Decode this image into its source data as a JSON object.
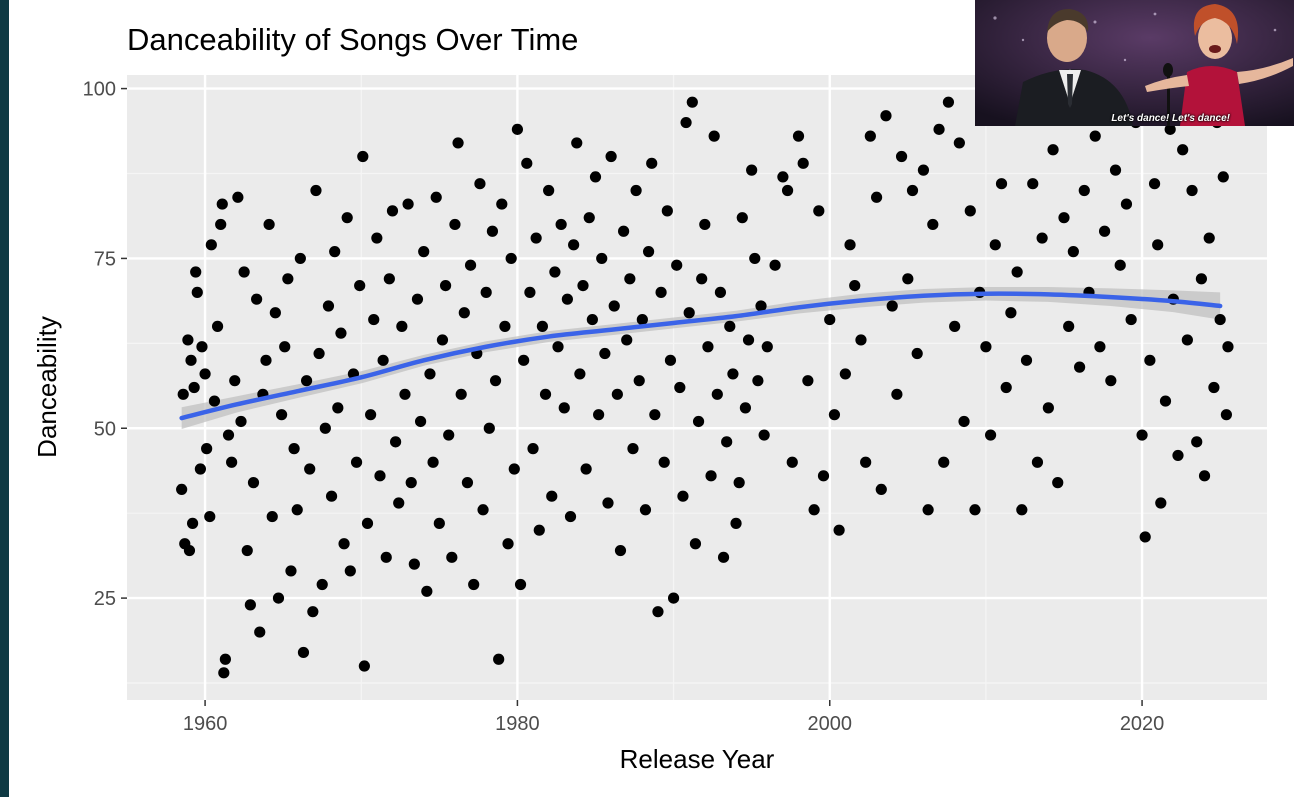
{
  "chart_data": {
    "type": "scatter",
    "title": "Danceability of Songs Over Time",
    "xlabel": "Release Year",
    "ylabel": "Danceability",
    "xlim": [
      1955,
      2028
    ],
    "ylim": [
      10,
      102
    ],
    "x_ticks": [
      1960,
      1980,
      2000,
      2020
    ],
    "y_ticks": [
      25,
      50,
      75,
      100
    ],
    "x_tick_labels": [
      "1960",
      "1980",
      "2000",
      "2020"
    ],
    "y_tick_labels": [
      "25",
      "50",
      "75",
      "100"
    ],
    "grid": true,
    "legend": "none",
    "point_color": "#000000",
    "trend_color": "#3a63e8",
    "trend_band_color": "#bdbdbd",
    "trend": {
      "method": "smooth",
      "x": [
        1958.5,
        1962,
        1966,
        1970,
        1974,
        1978,
        1982,
        1986,
        1990,
        1994,
        1998,
        2002,
        2006,
        2010,
        2014,
        2018,
        2022,
        2025
      ],
      "y": [
        51.5,
        53.5,
        55.5,
        57.5,
        60,
        62,
        63.5,
        64.5,
        65.5,
        66.5,
        67.8,
        68.8,
        69.5,
        69.8,
        69.7,
        69.3,
        68.7,
        68
      ],
      "band": [
        1.6,
        1.2,
        1,
        0.9,
        0.8,
        0.8,
        0.8,
        0.8,
        0.8,
        0.8,
        0.9,
        1,
        1,
        1,
        1.1,
        1.3,
        1.6,
        2
      ]
    },
    "points": [
      [
        1958.5,
        41
      ],
      [
        1958.6,
        55
      ],
      [
        1958.7,
        33
      ],
      [
        1958.9,
        63
      ],
      [
        1959.0,
        32
      ],
      [
        1959.1,
        60
      ],
      [
        1959.2,
        36
      ],
      [
        1959.3,
        56
      ],
      [
        1959.4,
        73
      ],
      [
        1959.5,
        70
      ],
      [
        1959.7,
        44
      ],
      [
        1959.8,
        62
      ],
      [
        1960.0,
        58
      ],
      [
        1960.1,
        47
      ],
      [
        1960.3,
        37
      ],
      [
        1960.4,
        77
      ],
      [
        1960.6,
        54
      ],
      [
        1960.8,
        65
      ],
      [
        1961.0,
        80
      ],
      [
        1961.1,
        83
      ],
      [
        1961.2,
        14
      ],
      [
        1961.3,
        16
      ],
      [
        1961.5,
        49
      ],
      [
        1961.7,
        45
      ],
      [
        1961.9,
        57
      ],
      [
        1962.1,
        84
      ],
      [
        1962.3,
        51
      ],
      [
        1962.5,
        73
      ],
      [
        1962.7,
        32
      ],
      [
        1962.9,
        24
      ],
      [
        1963.1,
        42
      ],
      [
        1963.3,
        69
      ],
      [
        1963.5,
        20
      ],
      [
        1963.7,
        55
      ],
      [
        1963.9,
        60
      ],
      [
        1964.1,
        80
      ],
      [
        1964.3,
        37
      ],
      [
        1964.5,
        67
      ],
      [
        1964.7,
        25
      ],
      [
        1964.9,
        52
      ],
      [
        1965.1,
        62
      ],
      [
        1965.3,
        72
      ],
      [
        1965.5,
        29
      ],
      [
        1965.7,
        47
      ],
      [
        1965.9,
        38
      ],
      [
        1966.1,
        75
      ],
      [
        1966.3,
        17
      ],
      [
        1966.5,
        57
      ],
      [
        1966.7,
        44
      ],
      [
        1966.9,
        23
      ],
      [
        1967.1,
        85
      ],
      [
        1967.3,
        61
      ],
      [
        1967.5,
        27
      ],
      [
        1967.7,
        50
      ],
      [
        1967.9,
        68
      ],
      [
        1968.1,
        40
      ],
      [
        1968.3,
        76
      ],
      [
        1968.5,
        53
      ],
      [
        1968.7,
        64
      ],
      [
        1968.9,
        33
      ],
      [
        1969.1,
        81
      ],
      [
        1969.3,
        29
      ],
      [
        1969.5,
        58
      ],
      [
        1969.7,
        45
      ],
      [
        1969.9,
        71
      ],
      [
        1970.1,
        90
      ],
      [
        1970.2,
        15
      ],
      [
        1970.4,
        36
      ],
      [
        1970.6,
        52
      ],
      [
        1970.8,
        66
      ],
      [
        1971.0,
        78
      ],
      [
        1971.2,
        43
      ],
      [
        1971.4,
        60
      ],
      [
        1971.6,
        31
      ],
      [
        1971.8,
        72
      ],
      [
        1972.0,
        82
      ],
      [
        1972.2,
        48
      ],
      [
        1972.4,
        39
      ],
      [
        1972.6,
        65
      ],
      [
        1972.8,
        55
      ],
      [
        1973.0,
        83
      ],
      [
        1973.2,
        42
      ],
      [
        1973.4,
        30
      ],
      [
        1973.6,
        69
      ],
      [
        1973.8,
        51
      ],
      [
        1974.0,
        76
      ],
      [
        1974.2,
        26
      ],
      [
        1974.4,
        58
      ],
      [
        1974.6,
        45
      ],
      [
        1974.8,
        84
      ],
      [
        1975.0,
        36
      ],
      [
        1975.2,
        63
      ],
      [
        1975.4,
        71
      ],
      [
        1975.6,
        49
      ],
      [
        1975.8,
        31
      ],
      [
        1976.0,
        80
      ],
      [
        1976.2,
        92
      ],
      [
        1976.4,
        55
      ],
      [
        1976.6,
        67
      ],
      [
        1976.8,
        42
      ],
      [
        1977.0,
        74
      ],
      [
        1977.2,
        27
      ],
      [
        1977.4,
        61
      ],
      [
        1977.6,
        86
      ],
      [
        1977.8,
        38
      ],
      [
        1978.0,
        70
      ],
      [
        1978.2,
        50
      ],
      [
        1978.4,
        79
      ],
      [
        1978.6,
        57
      ],
      [
        1978.8,
        16
      ],
      [
        1979.0,
        83
      ],
      [
        1979.2,
        65
      ],
      [
        1979.4,
        33
      ],
      [
        1979.6,
        75
      ],
      [
        1979.8,
        44
      ],
      [
        1980.0,
        94
      ],
      [
        1980.2,
        27
      ],
      [
        1980.4,
        60
      ],
      [
        1980.6,
        89
      ],
      [
        1980.8,
        70
      ],
      [
        1981.0,
        47
      ],
      [
        1981.2,
        78
      ],
      [
        1981.4,
        35
      ],
      [
        1981.6,
        65
      ],
      [
        1981.8,
        55
      ],
      [
        1982.0,
        85
      ],
      [
        1982.2,
        40
      ],
      [
        1982.4,
        73
      ],
      [
        1982.6,
        62
      ],
      [
        1982.8,
        80
      ],
      [
        1983.0,
        53
      ],
      [
        1983.2,
        69
      ],
      [
        1983.4,
        37
      ],
      [
        1983.6,
        77
      ],
      [
        1983.8,
        92
      ],
      [
        1984.0,
        58
      ],
      [
        1984.2,
        71
      ],
      [
        1984.4,
        44
      ],
      [
        1984.6,
        81
      ],
      [
        1984.8,
        66
      ],
      [
        1985.0,
        87
      ],
      [
        1985.2,
        52
      ],
      [
        1985.4,
        75
      ],
      [
        1985.6,
        61
      ],
      [
        1985.8,
        39
      ],
      [
        1986.0,
        90
      ],
      [
        1986.2,
        68
      ],
      [
        1986.4,
        55
      ],
      [
        1986.6,
        32
      ],
      [
        1986.8,
        79
      ],
      [
        1987.0,
        63
      ],
      [
        1987.2,
        72
      ],
      [
        1987.4,
        47
      ],
      [
        1987.6,
        85
      ],
      [
        1987.8,
        57
      ],
      [
        1988.0,
        66
      ],
      [
        1988.2,
        38
      ],
      [
        1988.4,
        76
      ],
      [
        1988.6,
        89
      ],
      [
        1988.8,
        52
      ],
      [
        1989.0,
        23
      ],
      [
        1989.2,
        70
      ],
      [
        1989.4,
        45
      ],
      [
        1989.6,
        82
      ],
      [
        1989.8,
        60
      ],
      [
        1990.0,
        25
      ],
      [
        1990.2,
        74
      ],
      [
        1990.4,
        56
      ],
      [
        1990.6,
        40
      ],
      [
        1990.8,
        95
      ],
      [
        1991.0,
        67
      ],
      [
        1991.2,
        98
      ],
      [
        1991.4,
        33
      ],
      [
        1991.6,
        51
      ],
      [
        1991.8,
        72
      ],
      [
        1992.0,
        80
      ],
      [
        1992.2,
        62
      ],
      [
        1992.4,
        43
      ],
      [
        1992.6,
        93
      ],
      [
        1992.8,
        55
      ],
      [
        1993.0,
        70
      ],
      [
        1993.2,
        31
      ],
      [
        1993.4,
        48
      ],
      [
        1993.6,
        65
      ],
      [
        1993.8,
        58
      ],
      [
        1994.0,
        36
      ],
      [
        1994.2,
        42
      ],
      [
        1994.4,
        81
      ],
      [
        1994.6,
        53
      ],
      [
        1994.8,
        63
      ],
      [
        1995.0,
        88
      ],
      [
        1995.2,
        75
      ],
      [
        1995.4,
        57
      ],
      [
        1995.6,
        68
      ],
      [
        1995.8,
        49
      ],
      [
        1996.0,
        62
      ],
      [
        1996.5,
        74
      ],
      [
        1997.0,
        87
      ],
      [
        1997.3,
        85
      ],
      [
        1997.6,
        45
      ],
      [
        1998.0,
        93
      ],
      [
        1998.3,
        89
      ],
      [
        1998.6,
        57
      ],
      [
        1999.0,
        38
      ],
      [
        1999.3,
        82
      ],
      [
        1999.6,
        43
      ],
      [
        2000.0,
        66
      ],
      [
        2000.3,
        52
      ],
      [
        2000.6,
        35
      ],
      [
        2001.0,
        58
      ],
      [
        2001.3,
        77
      ],
      [
        2001.6,
        71
      ],
      [
        2002.0,
        63
      ],
      [
        2002.3,
        45
      ],
      [
        2002.6,
        93
      ],
      [
        2003.0,
        84
      ],
      [
        2003.3,
        41
      ],
      [
        2003.6,
        96
      ],
      [
        2004.0,
        68
      ],
      [
        2004.3,
        55
      ],
      [
        2004.6,
        90
      ],
      [
        2005.0,
        72
      ],
      [
        2005.3,
        85
      ],
      [
        2005.6,
        61
      ],
      [
        2006.0,
        88
      ],
      [
        2006.3,
        38
      ],
      [
        2006.6,
        80
      ],
      [
        2007.0,
        94
      ],
      [
        2007.3,
        45
      ],
      [
        2007.6,
        98
      ],
      [
        2008.0,
        65
      ],
      [
        2008.3,
        92
      ],
      [
        2008.6,
        51
      ],
      [
        2009.0,
        82
      ],
      [
        2009.3,
        38
      ],
      [
        2009.6,
        70
      ],
      [
        2010.0,
        62
      ],
      [
        2010.3,
        49
      ],
      [
        2010.6,
        77
      ],
      [
        2011.0,
        86
      ],
      [
        2011.3,
        56
      ],
      [
        2011.6,
        67
      ],
      [
        2012.0,
        73
      ],
      [
        2012.3,
        38
      ],
      [
        2012.6,
        60
      ],
      [
        2013.0,
        86
      ],
      [
        2013.3,
        45
      ],
      [
        2013.6,
        78
      ],
      [
        2014.0,
        53
      ],
      [
        2014.3,
        91
      ],
      [
        2014.6,
        42
      ],
      [
        2015.0,
        81
      ],
      [
        2015.3,
        65
      ],
      [
        2015.6,
        76
      ],
      [
        2016.0,
        59
      ],
      [
        2016.3,
        85
      ],
      [
        2016.6,
        70
      ],
      [
        2017.0,
        93
      ],
      [
        2017.3,
        62
      ],
      [
        2017.6,
        79
      ],
      [
        2018.0,
        57
      ],
      [
        2018.3,
        88
      ],
      [
        2018.6,
        74
      ],
      [
        2019.0,
        83
      ],
      [
        2019.3,
        66
      ],
      [
        2019.6,
        95
      ],
      [
        2020.0,
        49
      ],
      [
        2020.2,
        34
      ],
      [
        2020.5,
        60
      ],
      [
        2020.8,
        86
      ],
      [
        2021.0,
        77
      ],
      [
        2021.2,
        39
      ],
      [
        2021.5,
        54
      ],
      [
        2021.8,
        94
      ],
      [
        2022.0,
        69
      ],
      [
        2022.3,
        46
      ],
      [
        2022.6,
        91
      ],
      [
        2022.9,
        63
      ],
      [
        2023.2,
        85
      ],
      [
        2023.5,
        48
      ],
      [
        2023.8,
        72
      ],
      [
        2024.0,
        43
      ],
      [
        2024.3,
        78
      ],
      [
        2024.6,
        56
      ],
      [
        2024.8,
        95
      ],
      [
        2025.0,
        66
      ],
      [
        2025.2,
        87
      ],
      [
        2025.4,
        52
      ],
      [
        2025.5,
        62
      ]
    ]
  },
  "inset_image": {
    "caption": "Let's dance! Let's dance!"
  }
}
